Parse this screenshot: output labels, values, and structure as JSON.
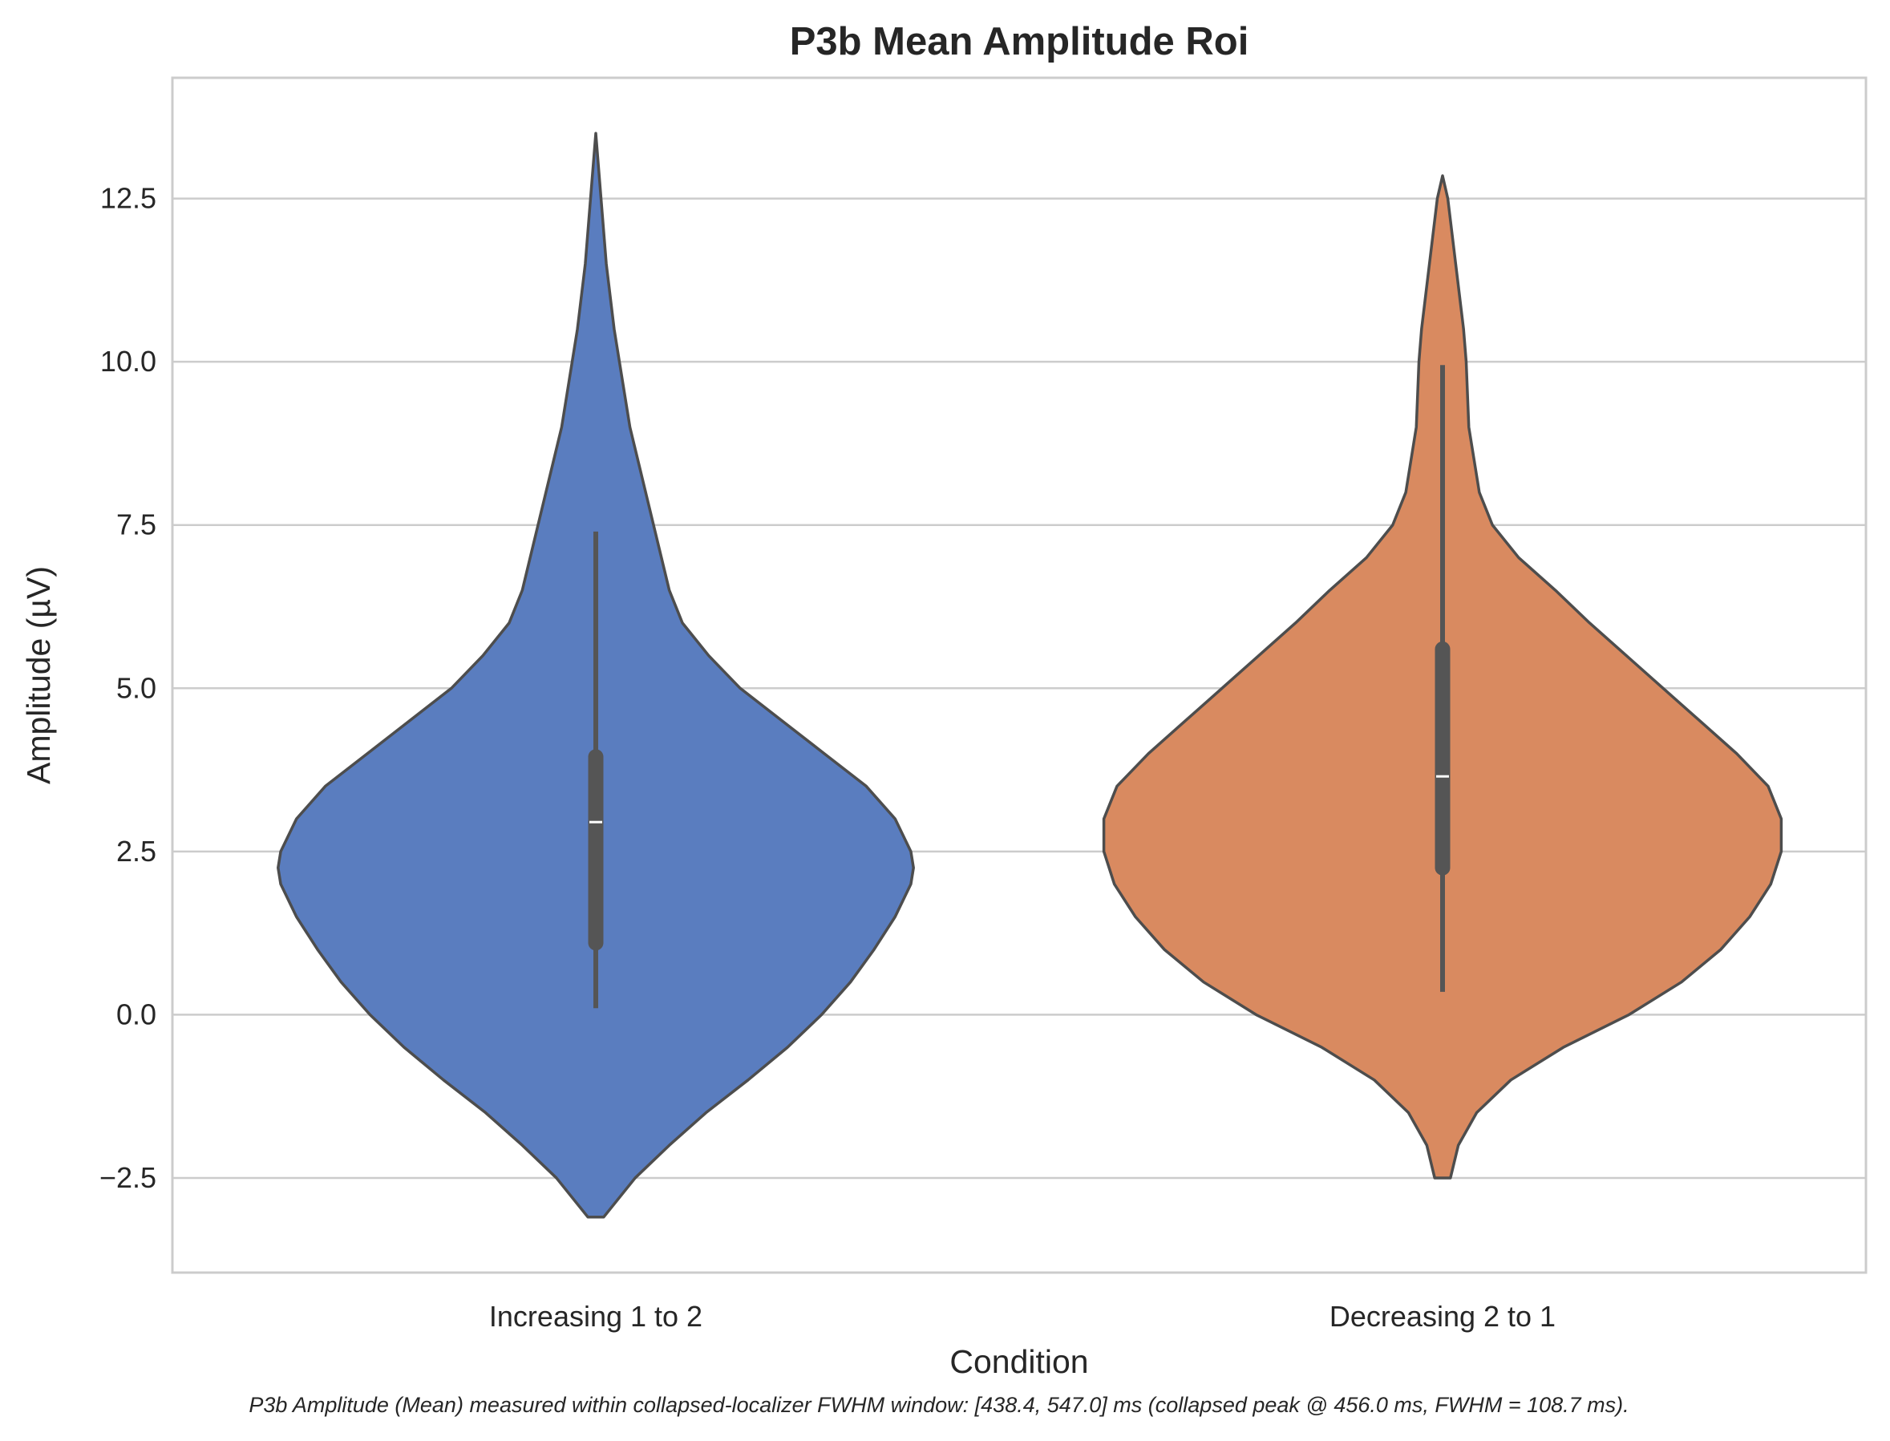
{
  "chart_data": {
    "type": "violin",
    "title": "P3b Mean Amplitude Roi",
    "xlabel": "Condition",
    "ylabel": "Amplitude (µV)",
    "ylim": [
      -3.95,
      14.35
    ],
    "yticks": [
      -2.5,
      0.0,
      2.5,
      5.0,
      7.5,
      10.0,
      12.5
    ],
    "ytick_labels": [
      "−2.5",
      "0.0",
      "2.5",
      "5.0",
      "7.5",
      "10.0",
      "12.5"
    ],
    "grid": "horizontal",
    "categories": [
      "Increasing 1 to 2",
      "Decreasing 2 to 1"
    ],
    "colors": [
      "#5a7dbf",
      "#d98a60"
    ],
    "violins": [
      {
        "category": "Increasing 1 to 2",
        "color": "#5a7dbf",
        "min": -3.1,
        "max": 13.5,
        "whisker_low": 0.1,
        "whisker_high": 7.4,
        "q1": 1.1,
        "q3": 3.95,
        "median": 2.95,
        "density": [
          [
            -3.1,
            0.03
          ],
          [
            -2.5,
            0.15
          ],
          [
            -2.0,
            0.28
          ],
          [
            -1.5,
            0.42
          ],
          [
            -1.0,
            0.58
          ],
          [
            -0.5,
            0.73
          ],
          [
            0.0,
            0.86
          ],
          [
            0.5,
            0.97
          ],
          [
            1.0,
            1.06
          ],
          [
            1.5,
            1.14
          ],
          [
            2.0,
            1.2
          ],
          [
            2.25,
            1.21
          ],
          [
            2.5,
            1.2
          ],
          [
            3.0,
            1.14
          ],
          [
            3.5,
            1.03
          ],
          [
            4.0,
            0.87
          ],
          [
            4.5,
            0.71
          ],
          [
            5.0,
            0.55
          ],
          [
            5.5,
            0.43
          ],
          [
            6.0,
            0.33
          ],
          [
            6.5,
            0.28
          ],
          [
            7.0,
            0.25
          ],
          [
            7.5,
            0.22
          ],
          [
            8.0,
            0.19
          ],
          [
            8.5,
            0.16
          ],
          [
            9.0,
            0.13
          ],
          [
            9.5,
            0.11
          ],
          [
            10.0,
            0.09
          ],
          [
            10.5,
            0.07
          ],
          [
            11.0,
            0.055
          ],
          [
            11.5,
            0.04
          ],
          [
            12.0,
            0.03
          ],
          [
            12.5,
            0.02
          ],
          [
            13.0,
            0.01
          ],
          [
            13.5,
            0.0
          ]
        ]
      },
      {
        "category": "Decreasing 2 to 1",
        "color": "#d98a60",
        "min": -2.5,
        "max": 12.85,
        "whisker_low": 0.35,
        "whisker_high": 9.95,
        "q1": 2.25,
        "q3": 5.6,
        "median": 3.65,
        "density": [
          [
            -2.5,
            0.03
          ],
          [
            -2.0,
            0.06
          ],
          [
            -1.5,
            0.13
          ],
          [
            -1.0,
            0.26
          ],
          [
            -0.5,
            0.46
          ],
          [
            0.0,
            0.71
          ],
          [
            0.5,
            0.91
          ],
          [
            1.0,
            1.06
          ],
          [
            1.5,
            1.17
          ],
          [
            2.0,
            1.25
          ],
          [
            2.5,
            1.29
          ],
          [
            2.75,
            1.29
          ],
          [
            3.0,
            1.29
          ],
          [
            3.5,
            1.24
          ],
          [
            4.0,
            1.12
          ],
          [
            4.5,
            0.98
          ],
          [
            5.0,
            0.84
          ],
          [
            5.5,
            0.7
          ],
          [
            6.0,
            0.56
          ],
          [
            6.5,
            0.43
          ],
          [
            7.0,
            0.29
          ],
          [
            7.5,
            0.19
          ],
          [
            8.0,
            0.14
          ],
          [
            8.5,
            0.12
          ],
          [
            9.0,
            0.1
          ],
          [
            9.5,
            0.095
          ],
          [
            10.0,
            0.09
          ],
          [
            10.5,
            0.08
          ],
          [
            11.0,
            0.065
          ],
          [
            11.5,
            0.05
          ],
          [
            12.0,
            0.035
          ],
          [
            12.5,
            0.02
          ],
          [
            12.85,
            0.0
          ]
        ]
      }
    ],
    "caption": "P3b Amplitude (Mean) measured within collapsed-localizer FWHM window: [438.4, 547.0] ms (collapsed peak @ 456.0 ms, FWHM = 108.7 ms)."
  }
}
